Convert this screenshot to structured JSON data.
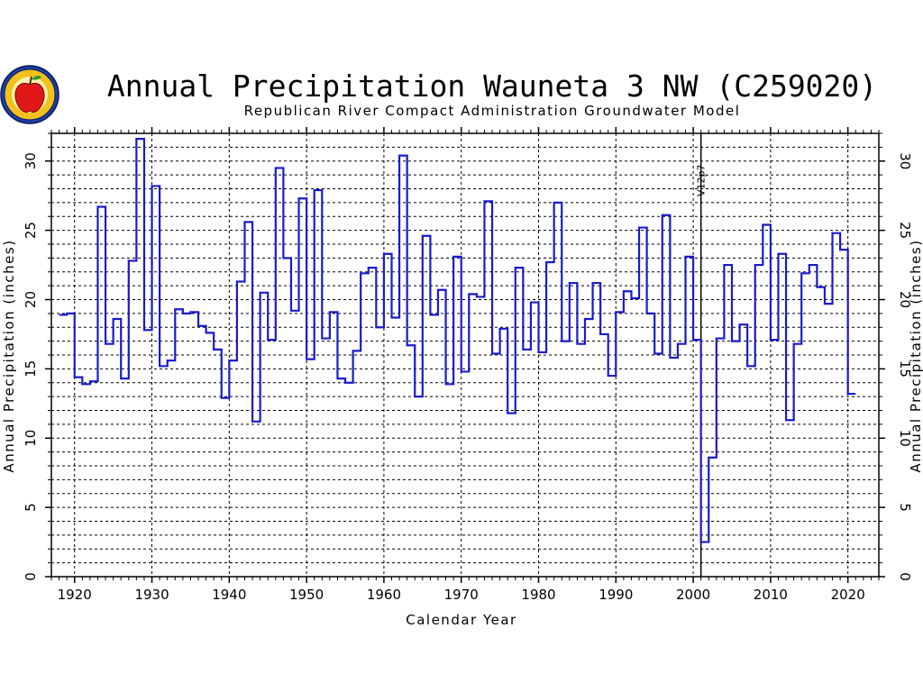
{
  "title": "Annual Precipitation Wauneta 3 NW (C259020)",
  "subtitle": "Republican River Compact Administration Groundwater Model",
  "logo": {
    "icon": "apple-seal-icon",
    "ring_color": "#1d3fa0",
    "fill_color": "#f2c21b",
    "apple_color": "#e01818"
  },
  "colors": {
    "series": "#1a1acc",
    "grid": "#000000"
  },
  "chart_data": {
    "type": "step",
    "title": "Annual Precipitation Wauneta 3 NW (C259020)",
    "subtitle": "Republican River Compact Administration Groundwater Model",
    "xlabel": "Calendar Year",
    "ylabel_left": "Annual Precipitation (inches)",
    "ylabel_right": "Annual Precipitation (inches)",
    "xlim": [
      1917,
      2024
    ],
    "ylim": [
      0,
      32
    ],
    "x_ticks": [
      1920,
      1930,
      1940,
      1950,
      1960,
      1970,
      1980,
      1990,
      2000,
      2010,
      2020
    ],
    "y_ticks": [
      0,
      5,
      10,
      15,
      20,
      25,
      30
    ],
    "grid": true,
    "vertical_marker": {
      "x": 2001,
      "label": "V12p7"
    },
    "series": [
      {
        "x": [
          1918,
          1919,
          1920,
          1921,
          1922,
          1923,
          1924,
          1925,
          1926,
          1927,
          1928,
          1929,
          1930,
          1931,
          1932,
          1933,
          1934,
          1935,
          1936,
          1937,
          1938,
          1939,
          1940,
          1941,
          1942,
          1943,
          1944,
          1945,
          1946,
          1947,
          1948,
          1949,
          1950,
          1951,
          1952,
          1953,
          1954,
          1955,
          1956,
          1957,
          1958,
          1959,
          1960,
          1961,
          1962,
          1963,
          1964,
          1965,
          1966,
          1967,
          1968,
          1969,
          1970,
          1971,
          1972,
          1973,
          1974,
          1975,
          1976,
          1977,
          1978,
          1979,
          1980,
          1981,
          1982,
          1983,
          1984,
          1985,
          1986,
          1987,
          1988,
          1989,
          1990,
          1991,
          1992,
          1993,
          1994,
          1995,
          1996,
          1997,
          1998,
          1999,
          2000,
          2001,
          2002,
          2003,
          2004,
          2005,
          2006,
          2007,
          2008,
          2009,
          2010,
          2011,
          2012,
          2013,
          2014,
          2015,
          2016,
          2017,
          2018,
          2019,
          2020
        ],
        "y": [
          18.9,
          19.0,
          14.4,
          13.9,
          14.1,
          26.7,
          16.8,
          18.6,
          14.3,
          22.8,
          31.6,
          17.8,
          28.2,
          15.2,
          15.6,
          19.3,
          19.0,
          19.1,
          18.1,
          17.6,
          16.4,
          12.9,
          15.6,
          21.3,
          25.6,
          11.2,
          20.5,
          17.1,
          29.5,
          23.0,
          19.2,
          27.3,
          15.7,
          27.9,
          17.2,
          19.1,
          14.3,
          14.0,
          16.3,
          21.9,
          22.3,
          18.0,
          23.3,
          18.7,
          30.4,
          16.7,
          13.0,
          24.6,
          18.9,
          20.7,
          13.9,
          23.1,
          14.8,
          20.4,
          20.2,
          27.1,
          16.1,
          17.9,
          11.8,
          22.3,
          16.4,
          19.8,
          16.2,
          22.7,
          27.0,
          17.0,
          21.2,
          16.8,
          18.6,
          21.2,
          17.5,
          14.5,
          19.1,
          20.6,
          20.1,
          25.2,
          19.0,
          16.1,
          26.1,
          15.8,
          16.8,
          23.1,
          17.1,
          2.5,
          8.6,
          17.2,
          22.5,
          17.0,
          18.2,
          15.2,
          22.5,
          25.4,
          17.1,
          23.3,
          11.3,
          16.8,
          21.9,
          22.5,
          20.9,
          19.7,
          24.8,
          23.6,
          13.2
        ]
      }
    ]
  }
}
